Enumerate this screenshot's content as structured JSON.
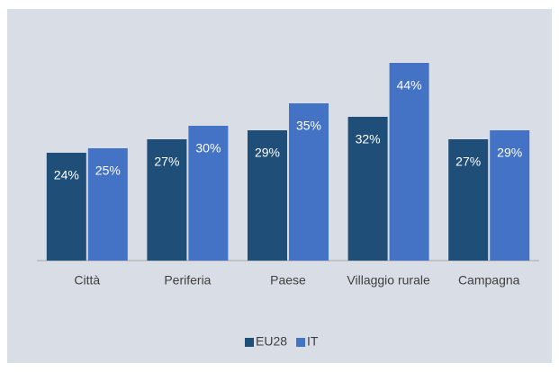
{
  "chart_data": {
    "type": "bar",
    "categories": [
      "Città",
      "Periferia",
      "Paese",
      "Villaggio rurale",
      "Campagna"
    ],
    "series": [
      {
        "name": "EU28",
        "color": "#1f4e79",
        "values": [
          24,
          27,
          29,
          32,
          27
        ],
        "value_labels": [
          "24%",
          "27%",
          "29%",
          "32%",
          "27%"
        ]
      },
      {
        "name": "IT",
        "color": "#4472c4",
        "values": [
          25,
          30,
          35,
          44,
          29
        ],
        "value_labels": [
          "25%",
          "30%",
          "35%",
          "44%",
          "29%"
        ]
      }
    ],
    "ylim": [
      0,
      50
    ],
    "grid": false,
    "legend": "bottom"
  }
}
